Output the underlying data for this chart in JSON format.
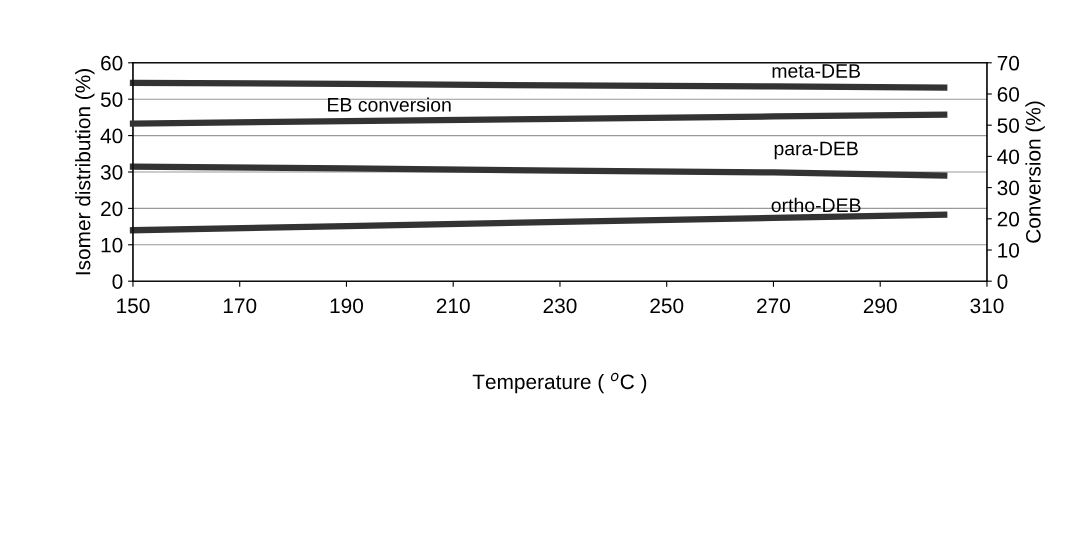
{
  "chart_data": {
    "type": "line",
    "xlabel": "Temperature ( $^{o}$C )",
    "ylabel": "Isomer distribution (%)",
    "y2label": "Conversion (%)",
    "xlim": [
      150,
      310
    ],
    "xticks": [
      150,
      170,
      190,
      210,
      230,
      250,
      270,
      290,
      310
    ],
    "ylim": [
      0,
      60
    ],
    "yticks": [
      0,
      10,
      20,
      30,
      40,
      50,
      60
    ],
    "y2lim": [
      0,
      70
    ],
    "y2ticks": [
      0,
      10,
      20,
      30,
      40,
      50,
      60,
      70
    ],
    "grid": "y",
    "legend": false,
    "marker": "none",
    "line_style": "solid",
    "x": [
      150,
      190,
      230,
      270,
      302
    ],
    "series": [
      {
        "color": "#333333",
        "values": [
          54.5,
          54.2,
          53.8,
          53.5,
          53.2
        ]
      },
      {
        "color": "#333333",
        "values": [
          50.5,
          51.3,
          52.0,
          52.8,
          53.4
        ],
        "axis": "y2"
      },
      {
        "color": "#333333",
        "values": [
          31.5,
          31.0,
          30.4,
          29.9,
          29.0
        ]
      },
      {
        "color": "#333333",
        "values": [
          14.0,
          15.1,
          16.3,
          17.4,
          18.3
        ]
      }
    ],
    "annotations": [
      "meta-DEB",
      "EB conversion",
      "para-DEB",
      "ortho-DEB"
    ]
  }
}
